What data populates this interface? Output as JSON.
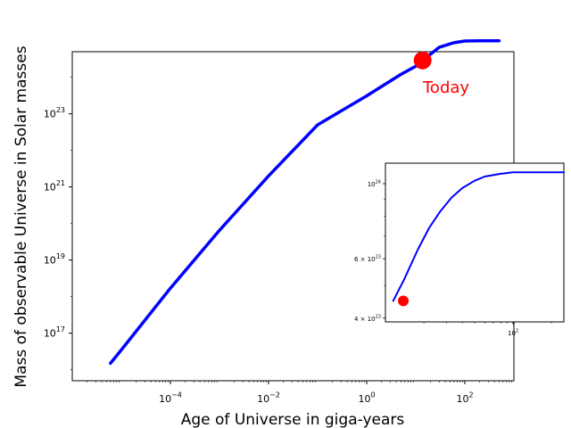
{
  "chart_data": [
    {
      "type": "line",
      "xlabel": "Age of Universe in giga-years",
      "ylabel": "Mass of observable Universe in Solar masses",
      "xscale": "log",
      "yscale": "log",
      "xlim": [
        1e-06,
        1000.0
      ],
      "ylim": [
        5000000000000000.0,
        5e+24
      ],
      "xticks": [
        {
          "value": 0.0001,
          "base": "10",
          "exp": "−4"
        },
        {
          "value": 0.01,
          "base": "10",
          "exp": "−2"
        },
        {
          "value": 1,
          "base": "10",
          "exp": "0"
        },
        {
          "value": 100,
          "base": "10",
          "exp": "2"
        }
      ],
      "yticks": [
        {
          "value": 1e+17,
          "base": "10",
          "exp": "17"
        },
        {
          "value": 1e+19,
          "base": "10",
          "exp": "19"
        },
        {
          "value": 1e+21,
          "base": "10",
          "exp": "21"
        },
        {
          "value": 1e+23,
          "base": "10",
          "exp": "23"
        }
      ],
      "series": [
        {
          "color": "#0000ff",
          "points": [
            [
              6e-06,
              1.5e+16
            ],
            [
              1e-05,
              3.5e+16
            ],
            [
              0.0001,
              1.7e+18
            ],
            [
              0.001,
              6.5e+19
            ],
            [
              0.01,
              2e+21
            ],
            [
              0.1,
              5e+22
            ],
            [
              1.0,
              3.1e+23
            ],
            [
              5.0,
              1.2e+24
            ],
            [
              10.0,
              2e+24
            ],
            [
              13.8,
              2.9e+24
            ],
            [
              30.0,
              6.6e+24
            ],
            [
              60.0,
              8.8e+24
            ],
            [
              100.0,
              9.8e+24
            ],
            [
              200.0,
              1e+25
            ],
            [
              500.0,
              1e+25
            ]
          ]
        }
      ],
      "marker": {
        "x": 13.8,
        "y": 2.9e+24,
        "color": "#ff0000",
        "label": "Today"
      },
      "grid": false
    },
    {
      "type": "line",
      "inset": true,
      "xscale": "log",
      "yscale": "log",
      "xlim": [
        10,
        250
      ],
      "ylim": [
        3.9e+23,
        1.15e+24
      ],
      "xticks": [
        {
          "value": 100,
          "base": "10",
          "exp": "2"
        }
      ],
      "yticks": [
        {
          "value": 4e+23,
          "prefix": "4 × 10",
          "exp": "23"
        },
        {
          "value": 6e+23,
          "prefix": "6 × 10",
          "exp": "23"
        },
        {
          "value": 1e+24,
          "prefix": "10",
          "exp": "24"
        }
      ],
      "series": [
        {
          "color": "#0000ff",
          "points": [
            [
              11.5,
              4.5e+23
            ],
            [
              14,
              5.2e+23
            ],
            [
              18,
              6.4e+23
            ],
            [
              22,
              7.4e+23
            ],
            [
              27,
              8.3e+23
            ],
            [
              33,
              9.1e+23
            ],
            [
              40,
              9.7e+23
            ],
            [
              50,
              1.02e+24
            ],
            [
              60,
              1.05e+24
            ],
            [
              80,
              1.07e+24
            ],
            [
              100,
              1.08e+24
            ],
            [
              150,
              1.08e+24
            ],
            [
              250,
              1.08e+24
            ]
          ]
        }
      ],
      "marker": {
        "x": 13.8,
        "y": 4.5e+23,
        "color": "#ff0000"
      },
      "grid": false
    }
  ]
}
